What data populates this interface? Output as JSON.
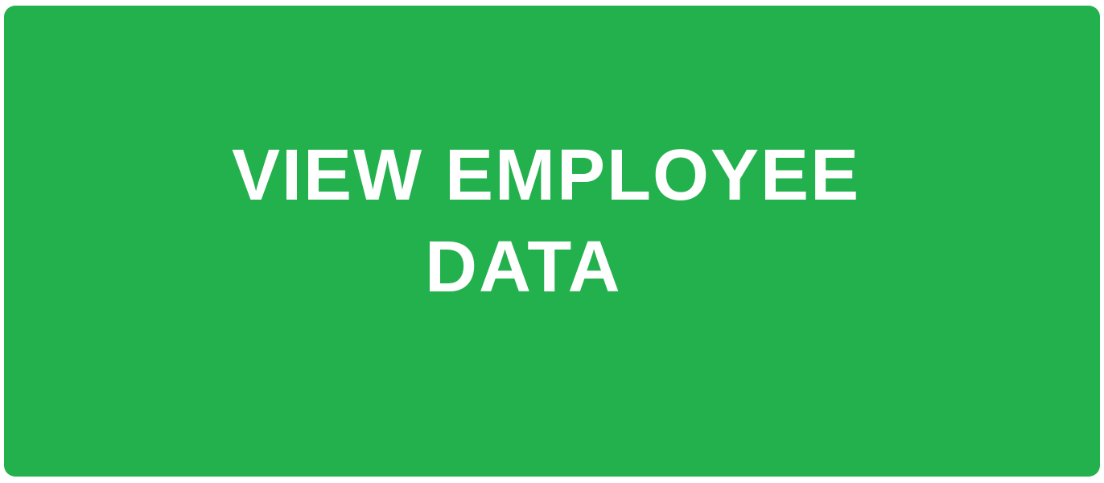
{
  "button": {
    "label_line_1": "VIEW EMPLOYEE",
    "label_line_2": "DATA",
    "background_color": "#23b14d",
    "text_color": "#ffffff"
  }
}
